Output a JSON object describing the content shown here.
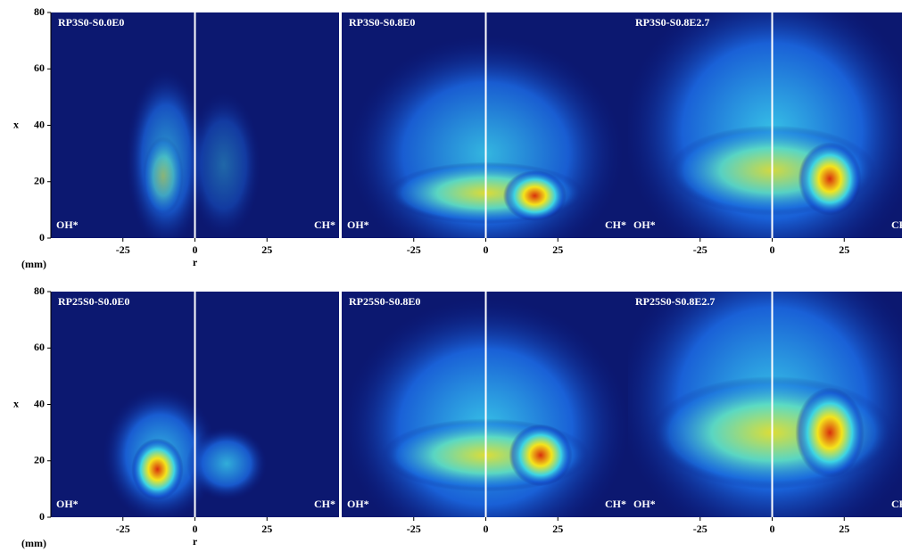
{
  "chart_data": [
    {
      "type": "image",
      "title": "RP3S0-S0.0E0",
      "labels": [
        "OH*",
        "CH*"
      ],
      "xlim": [
        -50,
        50
      ],
      "ylim": [
        0,
        80
      ],
      "xticks": [
        -25,
        0,
        25
      ],
      "yticks": [
        0,
        20,
        40,
        60,
        80
      ],
      "xlabel": "r",
      "ylabel": "x",
      "unit": "(mm)"
    },
    {
      "type": "image",
      "title": "RP3S0-S0.8E0",
      "labels": [
        "OH*",
        "CH*"
      ],
      "xlim": [
        -50,
        50
      ],
      "ylim": [
        0,
        80
      ],
      "xticks": [
        -25,
        0,
        25
      ]
    },
    {
      "type": "image",
      "title": "RP3S0-S0.8E2.7",
      "labels": [
        "OH*",
        "CH*"
      ],
      "xlim": [
        -50,
        50
      ],
      "ylim": [
        0,
        80
      ],
      "xticks": [
        -25,
        0,
        25
      ]
    },
    {
      "type": "image",
      "title": "RP25S0-S0.0E0",
      "labels": [
        "OH*",
        "CH*"
      ],
      "xlim": [
        -50,
        50
      ],
      "ylim": [
        0,
        80
      ],
      "xticks": [
        -25,
        0,
        25
      ],
      "yticks": [
        0,
        20,
        40,
        60,
        80
      ],
      "xlabel": "r",
      "ylabel": "x",
      "unit": "(mm)"
    },
    {
      "type": "image",
      "title": "RP25S0-S0.8E0",
      "labels": [
        "OH*",
        "CH*"
      ],
      "xlim": [
        -50,
        50
      ],
      "ylim": [
        0,
        80
      ],
      "xticks": [
        -25,
        0,
        25
      ]
    },
    {
      "type": "image",
      "title": "RP25S0-S0.8E2.7",
      "labels": [
        "OH*",
        "CH*"
      ],
      "xlim": [
        -50,
        50
      ],
      "ylim": [
        0,
        80
      ],
      "xticks": [
        -25,
        0,
        25
      ]
    }
  ]
}
